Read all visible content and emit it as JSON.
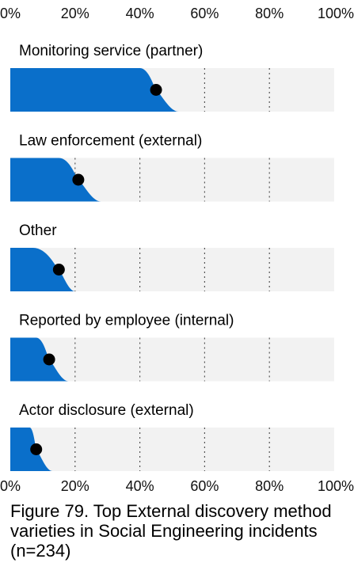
{
  "caption": "Figure 79. Top External discovery method varieties in Social Engineering incidents (n=234)",
  "colors": {
    "fill": "#0a6fca",
    "track": "#f2f2f2",
    "grid": "#555555",
    "dot": "#000000"
  },
  "chart_data": {
    "type": "slanted bar with point estimate",
    "title": "",
    "xlabel": "",
    "ylabel": "",
    "xlim": [
      0,
      100
    ],
    "x_ticks": [
      "0%",
      "20%",
      "40%",
      "60%",
      "80%",
      "100%"
    ],
    "grid": "vertical dotted lines at 20%, 40%, 60%, 80%",
    "categories": [
      "Monitoring service (partner)",
      "Law enforcement (external)",
      "Other",
      "Reported by employee (internal)",
      "Actor disclosure (external)"
    ],
    "values": [
      45,
      21,
      15,
      12,
      8
    ],
    "range_upper": [
      52,
      28,
      20,
      18,
      13
    ],
    "range_full_to": [
      40,
      15,
      7,
      8,
      6
    ]
  }
}
